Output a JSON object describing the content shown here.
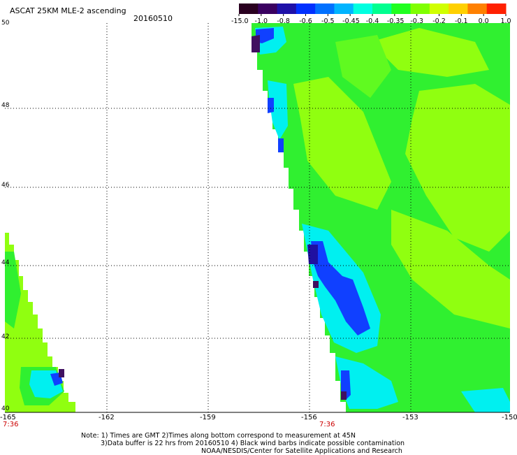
{
  "header": {
    "title": "ASCAT 25KM MLE-2 ascending",
    "date": "20160510"
  },
  "colorbar": {
    "labels": [
      "-15.0",
      "-1.0",
      "-0.8",
      "-0.6",
      "-0.5",
      "-0.45",
      "-0.4",
      "-0.35",
      "-0.3",
      "-0.2",
      "-0.1",
      "0.0",
      "1.0"
    ],
    "colors": [
      "#2a0020",
      "#3a0060",
      "#1e10a8",
      "#0030ff",
      "#0070ff",
      "#00b4ff",
      "#00ffe0",
      "#00ff90",
      "#20ff20",
      "#80ff00",
      "#d0ff00",
      "#ffd000",
      "#ff8000",
      "#ff2000"
    ]
  },
  "axes": {
    "x_ticks": [
      "-165",
      "-162",
      "-159",
      "-156",
      "-153",
      "-150"
    ],
    "y_ticks": [
      "50",
      "48",
      "46",
      "44",
      "42",
      "40"
    ],
    "time_labels": [
      "7:36",
      "7:36"
    ]
  },
  "notes": {
    "line1": "Note: 1) Times are GMT 2)Times along bottom correspond to measurement at 45N",
    "line2": "3)Data buffer is 22 hrs from 20160510 4) Black wind barbs indicate possible contamination",
    "line3": "NOAA/NESDIS/Center for Satellite Applications and Research"
  },
  "map_colors": {
    "background_green": "#30f030",
    "light_green": "#90ff10",
    "cyan": "#00f0f0",
    "blue": "#1040ff",
    "dark_blue": "#2010a0",
    "purple": "#401060"
  }
}
